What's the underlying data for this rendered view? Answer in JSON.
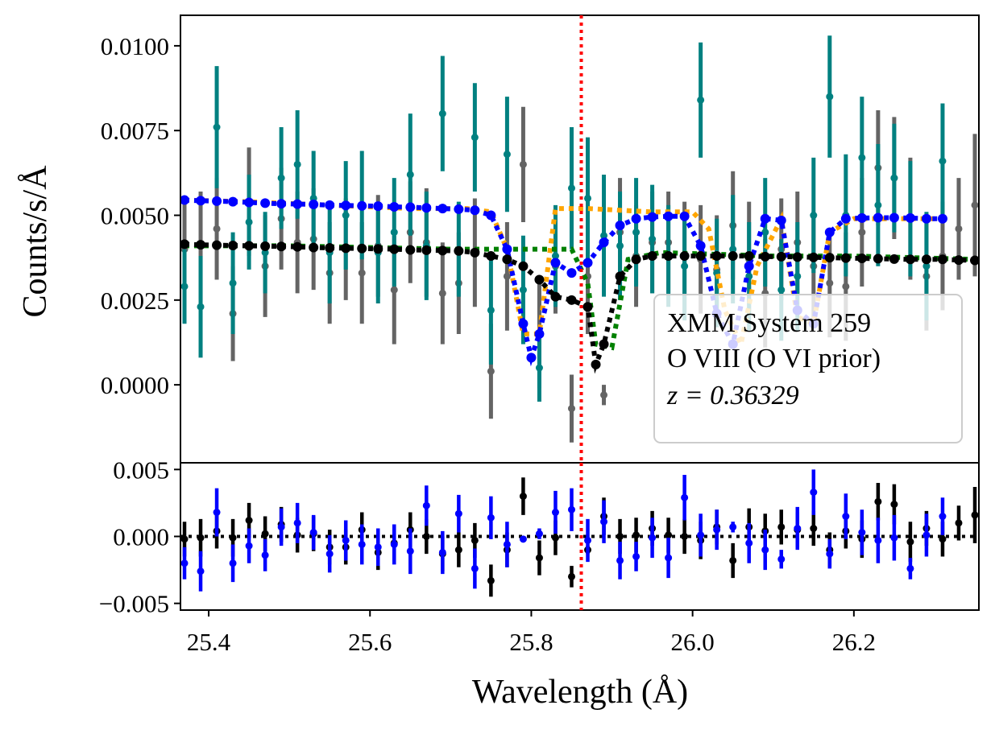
{
  "chart_data": {
    "type": "scatter",
    "x_label": "Wavelength (Å)",
    "x_range": [
      25.365,
      26.355
    ],
    "x_ticks": [
      "25.4",
      "25.6",
      "25.8",
      "26.0",
      "26.2"
    ],
    "marker_line": {
      "x": 25.862,
      "style": "dotted",
      "color": "#ff0000"
    },
    "legend": {
      "location": "lower-right",
      "lines": [
        "XMM System 259",
        "O VIII (O VI prior)",
        "z = 0.36329"
      ]
    },
    "colors": {
      "model_a": "#0000ff",
      "model_b": "#000000",
      "data_a": "#008080",
      "data_b": "#646464",
      "fit_a": "#ffa500",
      "fit_b": "#008000",
      "zero": "#000000"
    },
    "top_panel": {
      "y_label": "Counts/s/Å",
      "y_range": [
        -0.0023,
        0.0109
      ],
      "y_ticks": [
        {
          "value": 0.0,
          "label": "0.0000"
        },
        {
          "value": 0.0025,
          "label": "0.0025"
        },
        {
          "value": 0.005,
          "label": "0.0050"
        },
        {
          "value": 0.0075,
          "label": "0.0075"
        },
        {
          "value": 0.01,
          "label": "0.0100"
        }
      ],
      "data_series": [
        {
          "name": "teal-data",
          "x": [
            25.37,
            25.39,
            25.41,
            25.43,
            25.45,
            25.47,
            25.49,
            25.51,
            25.53,
            25.55,
            25.57,
            25.59,
            25.61,
            25.63,
            25.65,
            25.67,
            25.69,
            25.71,
            25.73,
            25.75,
            25.77,
            25.79,
            25.81,
            25.83,
            25.85,
            25.87,
            25.89,
            25.91,
            25.93,
            25.95,
            25.97,
            25.99,
            26.01,
            26.03,
            26.05,
            26.07,
            26.09,
            26.11,
            26.13,
            26.15,
            26.17,
            26.19,
            26.21,
            26.23,
            26.25,
            26.27,
            26.29,
            26.31
          ],
          "y": [
            0.0029,
            0.0023,
            0.0076,
            0.003,
            0.0048,
            0.0039,
            0.0061,
            0.0065,
            0.0055,
            0.0039,
            0.005,
            0.0053,
            0.0039,
            0.0045,
            0.0062,
            0.0041,
            0.008,
            0.004,
            0.0073,
            0.0022,
            0.0068,
            0.0028,
            0.0005,
            0.0038,
            0.0058,
            0.0055,
            0.0044,
            0.0041,
            0.0045,
            0.0043,
            0.0038,
            0.0035,
            0.0084,
            0.0033,
            0.004,
            0.0032,
            0.0045,
            0.0028,
            0.0032,
            0.005,
            0.0085,
            0.005,
            0.0067,
            0.0053,
            0.0061,
            0.0049,
            0.0035,
            0.0066
          ],
          "err": [
            0.0011,
            0.0015,
            0.0018,
            0.0015,
            0.0014,
            0.0012,
            0.0015,
            0.0016,
            0.0014,
            0.0015,
            0.0016,
            0.0016,
            0.0015,
            0.0016,
            0.0018,
            0.0016,
            0.0017,
            0.0014,
            0.0016,
            0.0016,
            0.0017,
            0.0016,
            0.001,
            0.0015,
            0.0018,
            0.0018,
            0.0018,
            0.0016,
            0.0016,
            0.0016,
            0.0015,
            0.0016,
            0.0017,
            0.0016,
            0.0016,
            0.0016,
            0.0016,
            0.0015,
            0.0016,
            0.0017,
            0.0018,
            0.0018,
            0.0018,
            0.0018,
            0.0016,
            0.0017,
            0.0016,
            0.0017
          ]
        },
        {
          "name": "gray-data",
          "x": [
            25.37,
            25.39,
            25.41,
            25.43,
            25.45,
            25.47,
            25.49,
            25.51,
            25.53,
            25.55,
            25.57,
            25.59,
            25.61,
            25.63,
            25.65,
            25.67,
            25.69,
            25.71,
            25.73,
            25.75,
            25.77,
            25.79,
            25.81,
            25.83,
            25.85,
            25.87,
            25.89,
            25.91,
            25.93,
            25.95,
            25.97,
            25.99,
            26.01,
            26.03,
            26.05,
            26.07,
            26.09,
            26.11,
            26.13,
            26.15,
            26.17,
            26.19,
            26.21,
            26.23,
            26.25,
            26.27,
            26.29,
            26.31,
            26.33,
            26.35
          ],
          "y": [
            0.004,
            0.0041,
            0.0046,
            0.0021,
            0.0054,
            0.0035,
            0.0049,
            0.0042,
            0.0043,
            0.0033,
            0.004,
            0.0033,
            0.0041,
            0.0028,
            0.0045,
            0.0042,
            0.0027,
            0.003,
            0.0039,
            0.0004,
            0.0032,
            0.0065,
            0.0015,
            0.0035,
            -0.0007,
            0.0032,
            -0.0003,
            0.0045,
            0.0038,
            0.0042,
            0.0042,
            0.0038,
            0.0037,
            0.0034,
            0.0047,
            0.0037,
            0.0027,
            0.004,
            0.0042,
            0.0035,
            0.003,
            0.0029,
            0.0045,
            0.0064,
            0.0061,
            0.0049,
            0.0032,
            0.0038,
            0.0046,
            0.0053
          ],
          "err": [
            0.0014,
            0.0016,
            0.0015,
            0.0014,
            0.0016,
            0.0015,
            0.0015,
            0.0015,
            0.0015,
            0.0015,
            0.0015,
            0.0015,
            0.0015,
            0.0016,
            0.0015,
            0.0016,
            0.0015,
            0.0015,
            0.0016,
            0.0014,
            0.0016,
            0.0017,
            0.0016,
            0.0014,
            0.001,
            0.0017,
            0.0003,
            0.0016,
            0.0015,
            0.0015,
            0.0015,
            0.0016,
            0.0016,
            0.0016,
            0.0016,
            0.0017,
            0.0016,
            0.0015,
            0.0015,
            0.0016,
            0.0016,
            0.0016,
            0.0016,
            0.0017,
            0.0018,
            0.0018,
            0.0016,
            0.0016,
            0.0015,
            0.0021
          ]
        }
      ],
      "fit_lines": [
        {
          "name": "orange-fit",
          "x": [
            25.37,
            25.45,
            25.55,
            25.65,
            25.72,
            25.75,
            25.77,
            25.79,
            25.81,
            25.83,
            25.85,
            25.87,
            25.95,
            26.0,
            26.02,
            26.04,
            26.06,
            26.08,
            26.11,
            26.13,
            26.15,
            26.17,
            26.2,
            26.3
          ],
          "y": [
            0.00545,
            0.0054,
            0.0053,
            0.0052,
            0.0052,
            0.0051,
            0.004,
            0.0015,
            0.0015,
            0.0052,
            0.0052,
            0.0052,
            0.0051,
            0.0051,
            0.0046,
            0.0022,
            0.0012,
            0.0035,
            0.0049,
            0.002,
            0.0018,
            0.0045,
            0.0049,
            0.0049
          ]
        },
        {
          "name": "green-fit",
          "x": [
            25.37,
            25.5,
            25.7,
            25.85,
            25.87,
            25.88,
            25.9,
            25.92,
            25.96,
            26.1,
            26.2,
            26.35
          ],
          "y": [
            0.0041,
            0.0041,
            0.004,
            0.004,
            0.003,
            0.0012,
            0.0011,
            0.0037,
            0.0039,
            0.0038,
            0.0038,
            0.0037
          ]
        }
      ],
      "model_series": [
        {
          "name": "blue-model",
          "x": [
            25.37,
            25.39,
            25.41,
            25.43,
            25.45,
            25.47,
            25.49,
            25.51,
            25.53,
            25.55,
            25.57,
            25.59,
            25.61,
            25.63,
            25.65,
            25.67,
            25.69,
            25.71,
            25.73,
            25.75,
            25.77,
            25.79,
            25.8,
            25.81,
            25.83,
            25.85,
            25.87,
            25.89,
            25.91,
            25.93,
            25.95,
            25.97,
            25.99,
            26.01,
            26.03,
            26.05,
            26.07,
            26.09,
            26.11,
            26.13,
            26.15,
            26.17,
            26.19,
            26.21,
            26.23,
            26.25,
            26.27,
            26.29,
            26.31
          ],
          "y": [
            0.00545,
            0.00543,
            0.00542,
            0.0054,
            0.00538,
            0.00536,
            0.00534,
            0.00533,
            0.00532,
            0.0053,
            0.00529,
            0.00528,
            0.00527,
            0.00525,
            0.00524,
            0.00522,
            0.0052,
            0.00518,
            0.00515,
            0.005,
            0.004,
            0.0018,
            0.0008,
            0.0015,
            0.0036,
            0.0033,
            0.0036,
            0.0042,
            0.0047,
            0.0049,
            0.00495,
            0.00497,
            0.00497,
            0.0041,
            0.0021,
            0.0012,
            0.0035,
            0.0049,
            0.00485,
            0.0022,
            0.0018,
            0.0045,
            0.0049,
            0.00492,
            0.00493,
            0.00493,
            0.00492,
            0.0049,
            0.0049
          ]
        },
        {
          "name": "black-model",
          "x": [
            25.37,
            25.39,
            25.41,
            25.43,
            25.45,
            25.47,
            25.49,
            25.51,
            25.53,
            25.55,
            25.57,
            25.59,
            25.61,
            25.63,
            25.65,
            25.67,
            25.69,
            25.71,
            25.73,
            25.75,
            25.77,
            25.79,
            25.81,
            25.83,
            25.85,
            25.87,
            25.88,
            25.89,
            25.91,
            25.93,
            25.95,
            25.97,
            25.99,
            26.01,
            26.03,
            26.05,
            26.07,
            26.09,
            26.11,
            26.13,
            26.15,
            26.17,
            26.19,
            26.21,
            26.23,
            26.25,
            26.27,
            26.29,
            26.31,
            26.33,
            26.35
          ],
          "y": [
            0.00415,
            0.00413,
            0.00412,
            0.00411,
            0.0041,
            0.00409,
            0.00408,
            0.00407,
            0.00405,
            0.00404,
            0.00403,
            0.00402,
            0.00401,
            0.004,
            0.00398,
            0.00397,
            0.00396,
            0.00395,
            0.0039,
            0.0038,
            0.0037,
            0.0035,
            0.0031,
            0.0026,
            0.0025,
            0.0023,
            0.0006,
            0.0012,
            0.0032,
            0.0037,
            0.0038,
            0.0038,
            0.0038,
            0.0038,
            0.0038,
            0.0038,
            0.0038,
            0.00378,
            0.00378,
            0.00377,
            0.00376,
            0.00375,
            0.00374,
            0.00373,
            0.00372,
            0.00371,
            0.0037,
            0.0037,
            0.0037,
            0.00368,
            0.00367
          ]
        }
      ]
    },
    "bottom_panel": {
      "y_range": [
        -0.0055,
        0.0055
      ],
      "y_ticks": [
        {
          "value": -0.005,
          "label": "−0.005"
        },
        {
          "value": 0.0,
          "label": "0.000"
        },
        {
          "value": 0.005,
          "label": "0.005"
        }
      ],
      "residual_series": [
        {
          "name": "blue-residuals",
          "x": [
            25.37,
            25.39,
            25.41,
            25.43,
            25.45,
            25.47,
            25.49,
            25.51,
            25.53,
            25.55,
            25.57,
            25.59,
            25.61,
            25.63,
            25.65,
            25.67,
            25.69,
            25.71,
            25.73,
            25.75,
            25.77,
            25.79,
            25.81,
            25.83,
            25.85,
            25.87,
            25.89,
            25.91,
            25.93,
            25.95,
            25.97,
            25.99,
            26.01,
            26.03,
            26.05,
            26.07,
            26.09,
            26.11,
            26.13,
            26.15,
            26.17,
            26.19,
            26.21,
            26.23,
            26.25,
            26.27,
            26.29,
            26.31
          ],
          "y": [
            -0.002,
            -0.0026,
            0.0018,
            -0.002,
            -0.0007,
            -0.0014,
            0.0007,
            0.001,
            0.0003,
            -0.0013,
            -0.0003,
            -0.0006,
            -0.0008,
            -0.0006,
            -0.0011,
            0.0023,
            -0.0012,
            0.0017,
            -0.0024,
            0.0014,
            -0.0006,
            -0.0002,
            0.0002,
            0.0018,
            0.002,
            -0.0003,
            0.0011,
            -0.0018,
            -0.0015,
            -0.0001,
            -0.0016,
            0.0029,
            0.0001,
            0.0005,
            0.0007,
            -0.0005,
            -0.001,
            -0.0017,
            0.0006,
            0.0033,
            -0.0013,
            0.0015,
            0.0003,
            -0.0003,
            -0.0001,
            -0.0024,
            0.0001,
            0.0015
          ],
          "err": [
            0.0012,
            0.0015,
            0.0018,
            0.0014,
            0.0013,
            0.0012,
            0.0014,
            0.0015,
            0.0013,
            0.0014,
            0.0015,
            0.0015,
            0.0014,
            0.0015,
            0.0017,
            0.0015,
            0.0016,
            0.0014,
            0.0015,
            0.0016,
            0.0017,
            0.0002,
            0.0004,
            0.0016,
            0.0016,
            0.0016,
            0.0016,
            0.0014,
            0.0011,
            0.0015,
            0.0015,
            0.0017,
            0.0016,
            0.0015,
            0.0004,
            0.0015,
            0.0015,
            0.0007,
            0.0016,
            0.0017,
            0.0011,
            0.0017,
            0.0017,
            0.0017,
            0.0017,
            0.0008,
            0.0016,
            0.0014
          ]
        },
        {
          "name": "black-residuals",
          "x": [
            25.37,
            25.39,
            25.41,
            25.43,
            25.45,
            25.47,
            25.49,
            25.51,
            25.53,
            25.55,
            25.57,
            25.59,
            25.61,
            25.63,
            25.65,
            25.67,
            25.69,
            25.71,
            25.73,
            25.75,
            25.77,
            25.79,
            25.81,
            25.83,
            25.85,
            25.87,
            25.89,
            25.91,
            25.93,
            25.95,
            25.97,
            25.99,
            26.01,
            26.03,
            26.05,
            26.07,
            26.09,
            26.11,
            26.13,
            26.15,
            26.17,
            26.19,
            26.21,
            26.23,
            26.25,
            26.27,
            26.29,
            26.31,
            26.33,
            26.35
          ],
          "y": [
            -0.0002,
            -0.0001,
            0.0004,
            -0.0001,
            0.0012,
            0.0002,
            0.0009,
            0.0001,
            0.0002,
            -0.0008,
            -0.0008,
            0.0005,
            -0.0012,
            -0.0005,
            0.0005,
            0.0,
            -0.0013,
            -0.001,
            -0.0003,
            -0.0033,
            -0.001,
            0.003,
            -0.0016,
            -0.0001,
            -0.003,
            -0.001,
            0.0015,
            0.0,
            0.0001,
            0.0006,
            0.0001,
            0.0,
            -0.0003,
            0.0007,
            -0.0018,
            0.0007,
            0.0004,
            0.0007,
            0.0005,
            0.0006,
            -0.001,
            0.0004,
            -0.0002,
            0.0026,
            0.0024,
            -0.0004,
            0.0006,
            -0.0002,
            0.001,
            0.0016
          ],
          "err": [
            0.0013,
            0.0014,
            0.0013,
            0.0014,
            0.0013,
            0.0013,
            0.0013,
            0.0013,
            0.0013,
            0.0013,
            0.0013,
            0.0013,
            0.0013,
            0.0013,
            0.0013,
            0.0013,
            0.0013,
            0.0013,
            0.0013,
            0.0012,
            0.0013,
            0.0014,
            0.0013,
            0.0013,
            0.0008,
            0.0003,
            0.0014,
            0.0013,
            0.0013,
            0.0013,
            0.0013,
            0.0013,
            0.0014,
            0.0013,
            0.0013,
            0.0014,
            0.0013,
            0.0013,
            0.0013,
            0.0013,
            0.0013,
            0.0013,
            0.0014,
            0.0014,
            0.0015,
            0.0015,
            0.0013,
            0.0013,
            0.0013,
            0.0021
          ]
        }
      ]
    }
  }
}
